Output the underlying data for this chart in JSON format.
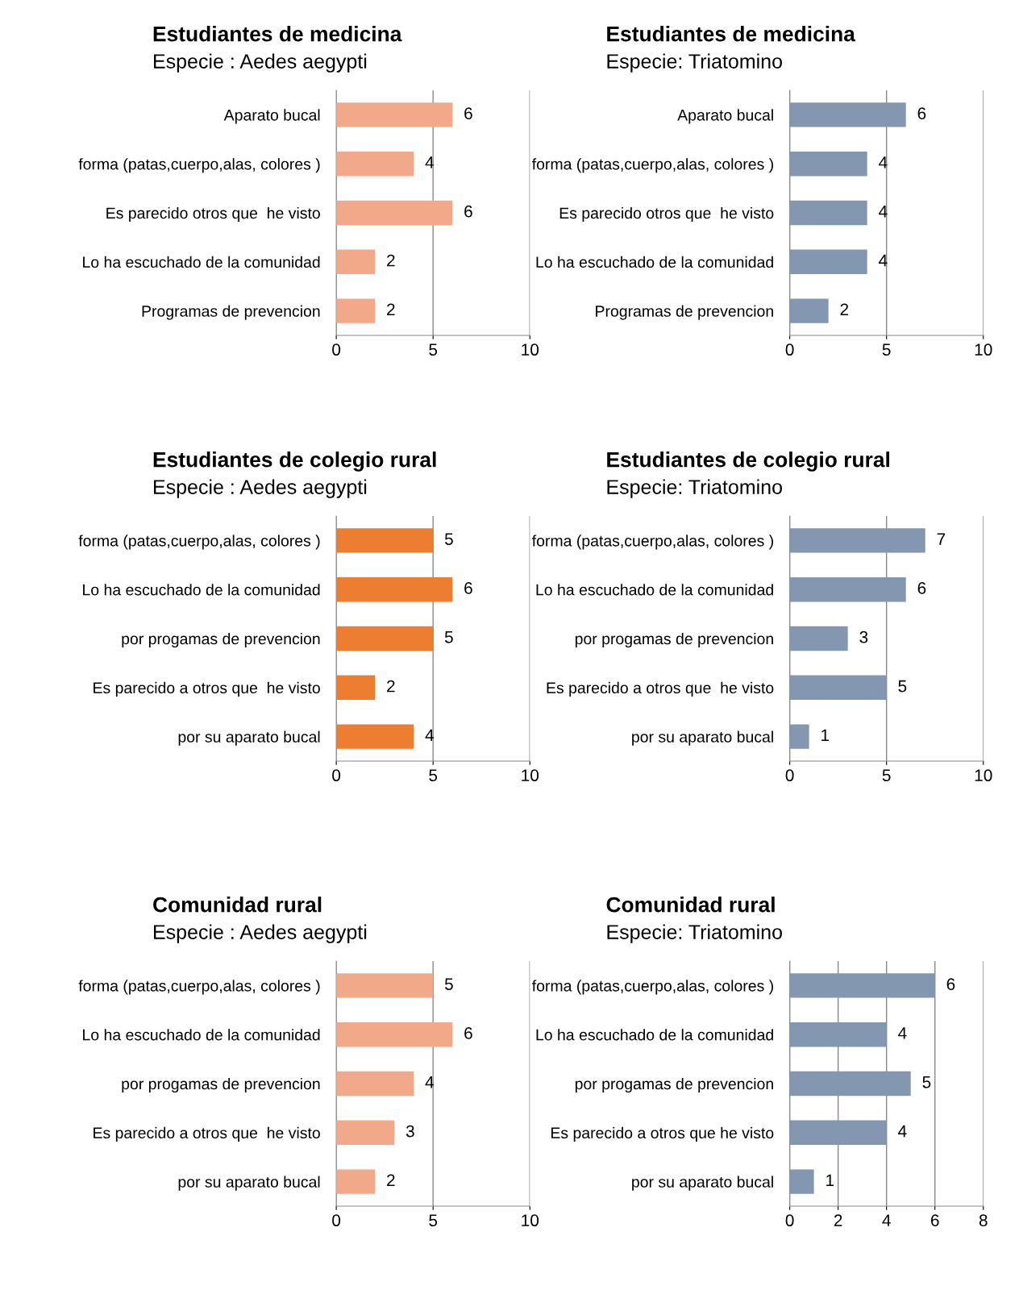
{
  "chart_data": [
    {
      "type": "bar",
      "orientation": "horizontal",
      "title": "Estudiantes de medicina",
      "subtitle": "Especie : Aedes aegypti",
      "categories": [
        "Aparato bucal",
        "forma (patas,cuerpo,alas, colores )",
        "Es parecido otros que  he visto",
        "Lo ha escuchado de la comunidad",
        "Programas de prevencion"
      ],
      "values": [
        6,
        4,
        6,
        2,
        2
      ],
      "color": "#f2a98a",
      "xlim": [
        0,
        10
      ],
      "xticks": [
        0,
        5,
        10
      ],
      "grid": "x",
      "data_labels": true
    },
    {
      "type": "bar",
      "orientation": "horizontal",
      "title": "Estudiantes de medicina",
      "subtitle": "Especie: Triatomino",
      "categories": [
        "Aparato bucal",
        "forma (patas,cuerpo,alas, colores )",
        "Es parecido otros que  he visto",
        "Lo ha escuchado de la comunidad",
        "Programas de prevencion"
      ],
      "values": [
        6,
        4,
        4,
        4,
        2
      ],
      "color": "#8497b0",
      "xlim": [
        0,
        10
      ],
      "xticks": [
        0,
        5,
        10
      ],
      "grid": "x",
      "data_labels": true
    },
    {
      "type": "bar",
      "orientation": "horizontal",
      "title": "Estudiantes de colegio rural",
      "subtitle": "Especie : Aedes aegypti",
      "categories": [
        "forma (patas,cuerpo,alas, colores )",
        "Lo ha escuchado de la comunidad",
        "por progamas de prevencion",
        "Es parecido a otros que  he visto",
        "por su aparato bucal"
      ],
      "values": [
        5,
        6,
        5,
        2,
        4
      ],
      "color": "#ed7d31",
      "xlim": [
        0,
        10
      ],
      "xticks": [
        0,
        5,
        10
      ],
      "grid": "x",
      "data_labels": true
    },
    {
      "type": "bar",
      "orientation": "horizontal",
      "title": "Estudiantes de colegio rural",
      "subtitle": "Especie: Triatomino",
      "categories": [
        "forma (patas,cuerpo,alas, colores )",
        "Lo ha escuchado de la comunidad",
        "por progamas de prevencion",
        "Es parecido a otros que  he visto",
        "por su aparato bucal"
      ],
      "values": [
        7,
        6,
        3,
        5,
        1
      ],
      "color": "#8497b0",
      "xlim": [
        0,
        10
      ],
      "xticks": [
        0,
        5,
        10
      ],
      "grid": "x",
      "data_labels": true
    },
    {
      "type": "bar",
      "orientation": "horizontal",
      "title": "Comunidad rural",
      "subtitle": "Especie : Aedes aegypti",
      "categories": [
        "forma (patas,cuerpo,alas, colores )",
        "Lo ha escuchado de la comunidad",
        "por progamas de prevencion",
        "Es parecido a otros que  he visto",
        "por su aparato bucal"
      ],
      "values": [
        5,
        6,
        4,
        3,
        2
      ],
      "color": "#f2a98a",
      "xlim": [
        0,
        10
      ],
      "xticks": [
        0,
        5,
        10
      ],
      "grid": "x",
      "data_labels": true
    },
    {
      "type": "bar",
      "orientation": "horizontal",
      "title": "Comunidad rural",
      "subtitle": "Especie: Triatomino",
      "categories": [
        "forma (patas,cuerpo,alas, colores )",
        "Lo ha escuchado de la comunidad",
        "por progamas de prevencion",
        "Es parecido a otros que he visto",
        "por su aparato bucal"
      ],
      "values": [
        6,
        4,
        5,
        4,
        1
      ],
      "color": "#8497b0",
      "xlim": [
        0,
        8
      ],
      "xticks": [
        0,
        2,
        4,
        6,
        8
      ],
      "grid": "x",
      "data_labels": true
    }
  ]
}
